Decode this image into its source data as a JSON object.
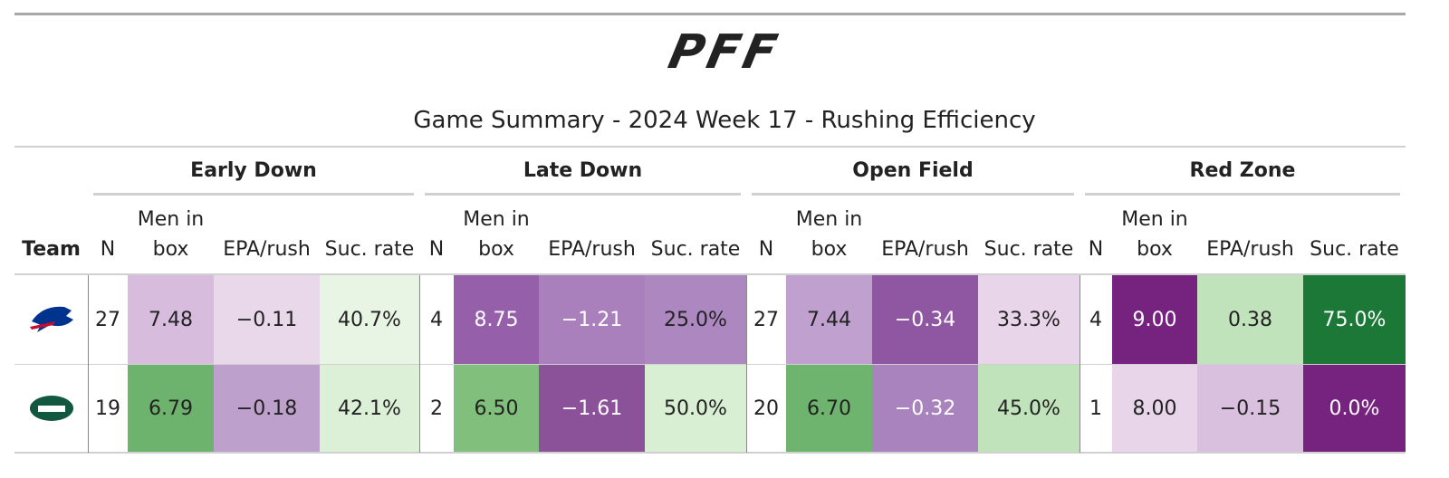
{
  "header": {
    "logo": "PFF",
    "title": "Game Summary - 2024 Week 17 - Rushing Efficiency"
  },
  "table": {
    "team_header": "Team",
    "groups": [
      "Early Down",
      "Late Down",
      "Open Field",
      "Red Zone"
    ],
    "columns": [
      "N",
      "Men in box",
      "EPA/rush",
      "Suc. rate"
    ],
    "rows": [
      {
        "cells": [
          "27",
          "7.48",
          "−0.11",
          "40.7%",
          "4",
          "8.75",
          "−1.21",
          "25.0%",
          "27",
          "7.44",
          "−0.34",
          "33.3%",
          "4",
          "9.00",
          "0.38",
          "75.0%"
        ],
        "colors": [
          "#ffffff",
          "#d8bcdd",
          "#e9d7ea",
          "#e8f4e4",
          "#ffffff",
          "#9560a9",
          "#a980bc",
          "#ad88c0",
          "#ffffff",
          "#c0a0cf",
          "#8f56a1",
          "#e8d5ea",
          "#ffffff",
          "#76237f",
          "#c1e3bc",
          "#1b7837"
        ]
      },
      {
        "cells": [
          "19",
          "6.79",
          "−0.18",
          "42.1%",
          "2",
          "6.50",
          "−1.61",
          "50.0%",
          "20",
          "6.70",
          "−0.32",
          "45.0%",
          "1",
          "8.00",
          "−0.15",
          "0.0%"
        ],
        "colors": [
          "#ffffff",
          "#6eb36d",
          "#bda0cc",
          "#dcf0d7",
          "#ffffff",
          "#80c07c",
          "#8b5199",
          "#d9efd3",
          "#ffffff",
          "#6fb46e",
          "#a983bd",
          "#c1e3bb",
          "#ffffff",
          "#e8d5ea",
          "#d9c0df",
          "#76237f"
        ]
      }
    ]
  }
}
